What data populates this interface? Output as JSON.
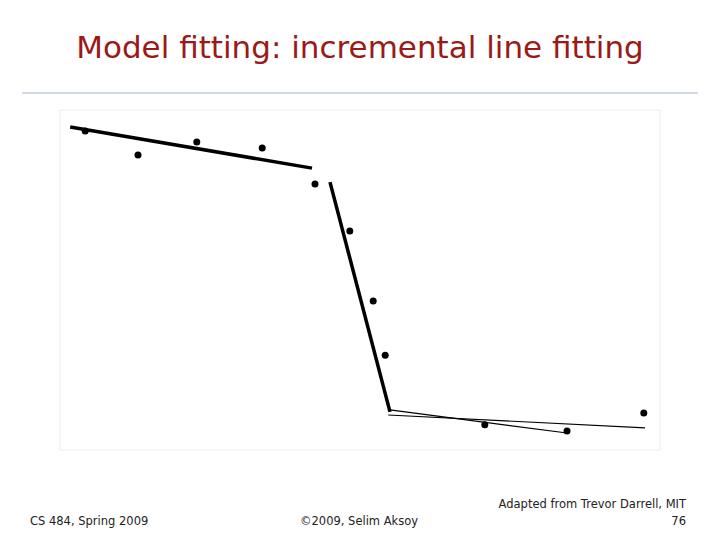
{
  "chart_data": {
    "type": "scatter",
    "title": "Model fitting: incremental line fitting",
    "xlim": [
      0,
      100
    ],
    "ylim": [
      0,
      100
    ],
    "tick_labels": false,
    "grid": false,
    "series": [
      {
        "type": "scatter",
        "marker": "circle",
        "color": "#000000",
        "x": [
          4.2,
          13,
          22.8,
          33.7,
          42.5,
          48.3,
          52.2,
          54.2,
          70.8,
          84.5,
          97.3
        ],
        "values": [
          93.8,
          86.8,
          90.6,
          88.8,
          78.2,
          64.4,
          43.8,
          27.9,
          7.4,
          5.6,
          10.9
        ]
      },
      {
        "type": "line",
        "line_style": "thick",
        "color": "#000000",
        "x": [
          1.7,
          42
        ],
        "values": [
          95.0,
          82.9
        ]
      },
      {
        "type": "line",
        "line_style": "thick",
        "color": "#000000",
        "x": [
          45,
          55
        ],
        "values": [
          78.8,
          11.2
        ]
      },
      {
        "type": "line",
        "line_style": "thin",
        "color": "#000000",
        "x": [
          54.7,
          97.5
        ],
        "values": [
          10.3,
          6.5
        ]
      },
      {
        "type": "line",
        "line_style": "thin",
        "color": "#000000",
        "x": [
          55,
          84.5
        ],
        "values": [
          11.8,
          5.0
        ]
      }
    ]
  },
  "footer": {
    "course": "CS 484, Spring 2009",
    "copyright": "©2009, Selim Aksoy",
    "credit": "Adapted from Trevor Darrell, MIT",
    "page": "76"
  }
}
